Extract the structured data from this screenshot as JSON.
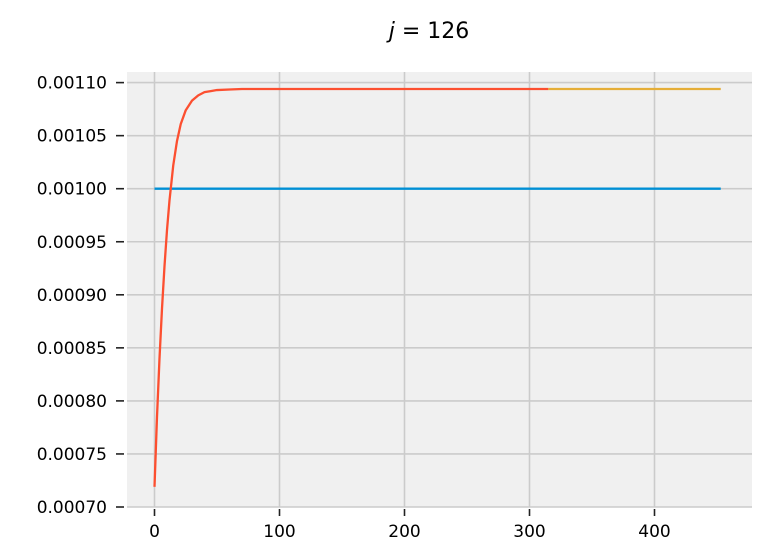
{
  "chart_data": {
    "type": "line",
    "title_var": "j",
    "title_op": " = ",
    "title_val": "126",
    "xlabel": "",
    "ylabel": "",
    "xlim": [
      -22,
      478
    ],
    "ylim": [
      0.0007,
      0.00111
    ],
    "grid": true,
    "legend": "none",
    "x_ticks": [
      {
        "value": 0,
        "label": "0"
      },
      {
        "value": 100,
        "label": "100"
      },
      {
        "value": 200,
        "label": "200"
      },
      {
        "value": 300,
        "label": "300"
      },
      {
        "value": 400,
        "label": "400"
      }
    ],
    "y_ticks": [
      {
        "value": 0.0007,
        "label": "0.00070"
      },
      {
        "value": 0.00075,
        "label": "0.00075"
      },
      {
        "value": 0.0008,
        "label": "0.00080"
      },
      {
        "value": 0.00085,
        "label": "0.00085"
      },
      {
        "value": 0.0009,
        "label": "0.00090"
      },
      {
        "value": 0.00095,
        "label": "0.00095"
      },
      {
        "value": 0.001,
        "label": "0.00100"
      },
      {
        "value": 0.00105,
        "label": "0.00105"
      },
      {
        "value": 0.0011,
        "label": "0.00110"
      }
    ],
    "series": [
      {
        "color": "#008fd5",
        "x": [
          0,
          453
        ],
        "y": [
          0.001,
          0.001
        ]
      },
      {
        "color": "#e5ae38",
        "x": [
          315,
          453
        ],
        "y": [
          0.001094,
          0.001094
        ]
      },
      {
        "color": "#fc4f30",
        "x": [
          0,
          2,
          4,
          6,
          8,
          10,
          12,
          15,
          18,
          21,
          25,
          30,
          35,
          40,
          45,
          50,
          60,
          70,
          80,
          100,
          150,
          200,
          250,
          300,
          315
        ],
        "y": [
          0.000719,
          0.000785,
          0.00084,
          0.000887,
          0.000927,
          0.000961,
          0.000989,
          0.001022,
          0.001045,
          0.001061,
          0.001074,
          0.001083,
          0.001088,
          0.001091,
          0.001092,
          0.001093,
          0.0010935,
          0.001094,
          0.001094,
          0.001094,
          0.001094,
          0.001094,
          0.001094,
          0.001094,
          0.001094
        ]
      }
    ]
  },
  "colors": {
    "plot_background": "#f0f0f0",
    "grid": "#cbcbcb",
    "page_background": "#ffffff"
  }
}
